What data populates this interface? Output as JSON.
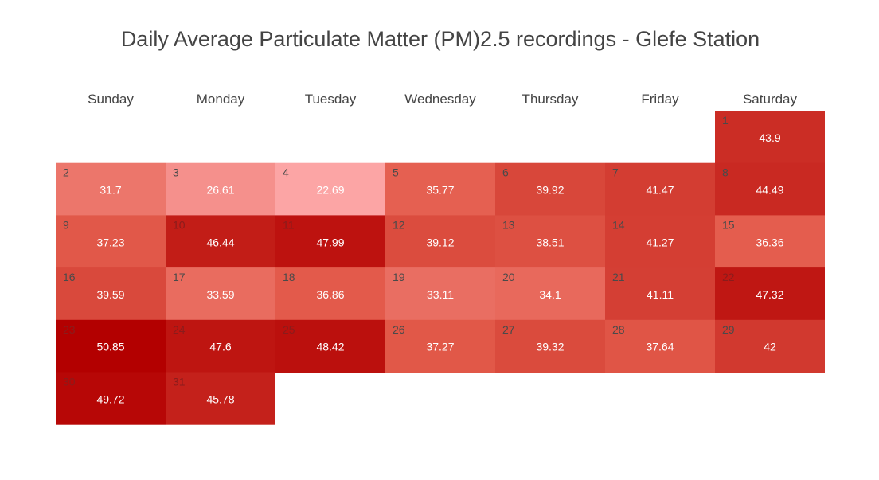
{
  "chart_data": {
    "type": "heatmap",
    "title": "Daily Average Particulate Matter (PM)2.5 recordings - Glefe Station",
    "weekdays": [
      "Sunday",
      "Monday",
      "Tuesday",
      "Wednesday",
      "Thursday",
      "Friday",
      "Saturday"
    ],
    "first_weekday_index": 6,
    "days": [
      {
        "day": 1,
        "value": 43.9
      },
      {
        "day": 2,
        "value": 31.7
      },
      {
        "day": 3,
        "value": 26.61
      },
      {
        "day": 4,
        "value": 22.69
      },
      {
        "day": 5,
        "value": 35.77
      },
      {
        "day": 6,
        "value": 39.92
      },
      {
        "day": 7,
        "value": 41.47
      },
      {
        "day": 8,
        "value": 44.49
      },
      {
        "day": 9,
        "value": 37.23
      },
      {
        "day": 10,
        "value": 46.44
      },
      {
        "day": 11,
        "value": 47.99
      },
      {
        "day": 12,
        "value": 39.12
      },
      {
        "day": 13,
        "value": 38.51
      },
      {
        "day": 14,
        "value": 41.27
      },
      {
        "day": 15,
        "value": 36.36
      },
      {
        "day": 16,
        "value": 39.59
      },
      {
        "day": 17,
        "value": 33.59
      },
      {
        "day": 18,
        "value": 36.86
      },
      {
        "day": 19,
        "value": 33.11
      },
      {
        "day": 20,
        "value": 34.1
      },
      {
        "day": 21,
        "value": 41.11
      },
      {
        "day": 22,
        "value": 47.32
      },
      {
        "day": 23,
        "value": 50.85
      },
      {
        "day": 24,
        "value": 47.6
      },
      {
        "day": 25,
        "value": 48.42
      },
      {
        "day": 26,
        "value": 37.27
      },
      {
        "day": 27,
        "value": 39.32
      },
      {
        "day": 28,
        "value": 37.64
      },
      {
        "day": 29,
        "value": 42
      },
      {
        "day": 30,
        "value": 49.72
      },
      {
        "day": 31,
        "value": 45.78
      }
    ],
    "color_scale": {
      "low": "#fca5a5",
      "mid": "#e35b4b",
      "high": "#b30000"
    },
    "legend": "none"
  }
}
